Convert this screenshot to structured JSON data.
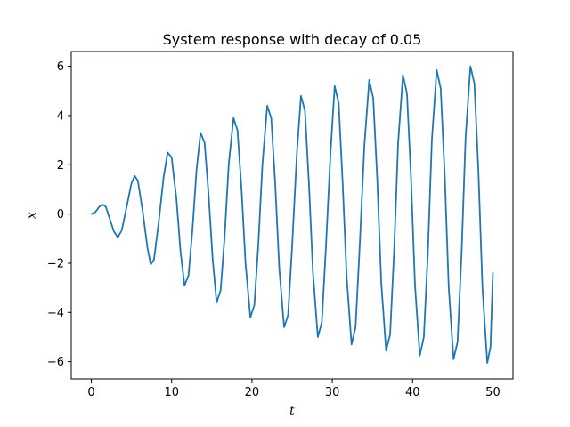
{
  "chart_data": {
    "type": "line",
    "title": "System response with decay of 0.05",
    "xlabel": "t",
    "ylabel": "x",
    "xlim": [
      -2.5,
      52.5
    ],
    "ylim": [
      -6.7,
      6.6
    ],
    "x_ticks": [
      0,
      10,
      20,
      30,
      40,
      50
    ],
    "x_tick_labels": [
      "0",
      "10",
      "20",
      "30",
      "40",
      "50"
    ],
    "y_ticks": [
      -6,
      -4,
      -2,
      0,
      2,
      4,
      6
    ],
    "y_tick_labels": [
      "−6",
      "−4",
      "−2",
      "0",
      "2",
      "4",
      "6"
    ],
    "grid": false,
    "legend": false,
    "series": [
      {
        "name": "x(t)",
        "color": "#1f77b4",
        "points": [
          [
            0,
            0.0
          ],
          [
            0.5,
            0.08
          ],
          [
            1.0,
            0.3
          ],
          [
            1.4,
            0.39
          ],
          [
            1.8,
            0.3
          ],
          [
            2.3,
            -0.2
          ],
          [
            2.8,
            -0.7
          ],
          [
            3.3,
            -0.95
          ],
          [
            3.8,
            -0.65
          ],
          [
            4.4,
            0.3
          ],
          [
            5.0,
            1.25
          ],
          [
            5.4,
            1.55
          ],
          [
            5.8,
            1.35
          ],
          [
            6.4,
            0.1
          ],
          [
            7.0,
            -1.4
          ],
          [
            7.4,
            -2.05
          ],
          [
            7.8,
            -1.85
          ],
          [
            8.4,
            -0.3
          ],
          [
            9.0,
            1.5
          ],
          [
            9.5,
            2.5
          ],
          [
            10.0,
            2.3
          ],
          [
            10.6,
            0.6
          ],
          [
            11.1,
            -1.5
          ],
          [
            11.6,
            -2.9
          ],
          [
            12.1,
            -2.5
          ],
          [
            12.6,
            -0.6
          ],
          [
            13.1,
            1.8
          ],
          [
            13.6,
            3.3
          ],
          [
            14.1,
            2.9
          ],
          [
            14.6,
            0.8
          ],
          [
            15.1,
            -1.8
          ],
          [
            15.6,
            -3.6
          ],
          [
            16.1,
            -3.1
          ],
          [
            16.6,
            -0.9
          ],
          [
            17.1,
            2.0
          ],
          [
            17.7,
            3.9
          ],
          [
            18.2,
            3.4
          ],
          [
            18.7,
            1.0
          ],
          [
            19.2,
            -2.0
          ],
          [
            19.8,
            -4.2
          ],
          [
            20.3,
            -3.7
          ],
          [
            20.8,
            -1.2
          ],
          [
            21.3,
            2.0
          ],
          [
            21.9,
            4.4
          ],
          [
            22.4,
            3.9
          ],
          [
            22.9,
            1.2
          ],
          [
            23.4,
            -2.2
          ],
          [
            24.0,
            -4.6
          ],
          [
            24.5,
            -4.1
          ],
          [
            25.0,
            -1.3
          ],
          [
            25.6,
            2.5
          ],
          [
            26.1,
            4.8
          ],
          [
            26.6,
            4.2
          ],
          [
            27.1,
            1.2
          ],
          [
            27.6,
            -2.4
          ],
          [
            28.2,
            -5.0
          ],
          [
            28.7,
            -4.4
          ],
          [
            29.2,
            -1.4
          ],
          [
            29.8,
            2.6
          ],
          [
            30.3,
            5.2
          ],
          [
            30.8,
            4.5
          ],
          [
            31.3,
            1.2
          ],
          [
            31.8,
            -2.6
          ],
          [
            32.4,
            -5.3
          ],
          [
            32.9,
            -4.6
          ],
          [
            33.4,
            -1.4
          ],
          [
            34.0,
            2.8
          ],
          [
            34.6,
            5.45
          ],
          [
            35.1,
            4.7
          ],
          [
            35.6,
            1.4
          ],
          [
            36.1,
            -2.8
          ],
          [
            36.7,
            -5.55
          ],
          [
            37.2,
            -4.9
          ],
          [
            37.7,
            -1.5
          ],
          [
            38.2,
            2.9
          ],
          [
            38.8,
            5.65
          ],
          [
            39.3,
            4.9
          ],
          [
            39.8,
            1.5
          ],
          [
            40.3,
            -2.9
          ],
          [
            40.9,
            -5.75
          ],
          [
            41.4,
            -5.0
          ],
          [
            41.9,
            -1.6
          ],
          [
            42.4,
            3.0
          ],
          [
            43.0,
            5.85
          ],
          [
            43.5,
            5.1
          ],
          [
            44.0,
            1.6
          ],
          [
            44.5,
            -3.0
          ],
          [
            45.1,
            -5.9
          ],
          [
            45.6,
            -5.2
          ],
          [
            46.1,
            -1.6
          ],
          [
            46.6,
            3.1
          ],
          [
            47.2,
            6.0
          ],
          [
            47.7,
            5.3
          ],
          [
            48.2,
            1.7
          ],
          [
            48.7,
            -3.0
          ],
          [
            49.3,
            -6.05
          ],
          [
            49.7,
            -5.4
          ],
          [
            50.0,
            -2.4
          ]
        ]
      }
    ]
  }
}
